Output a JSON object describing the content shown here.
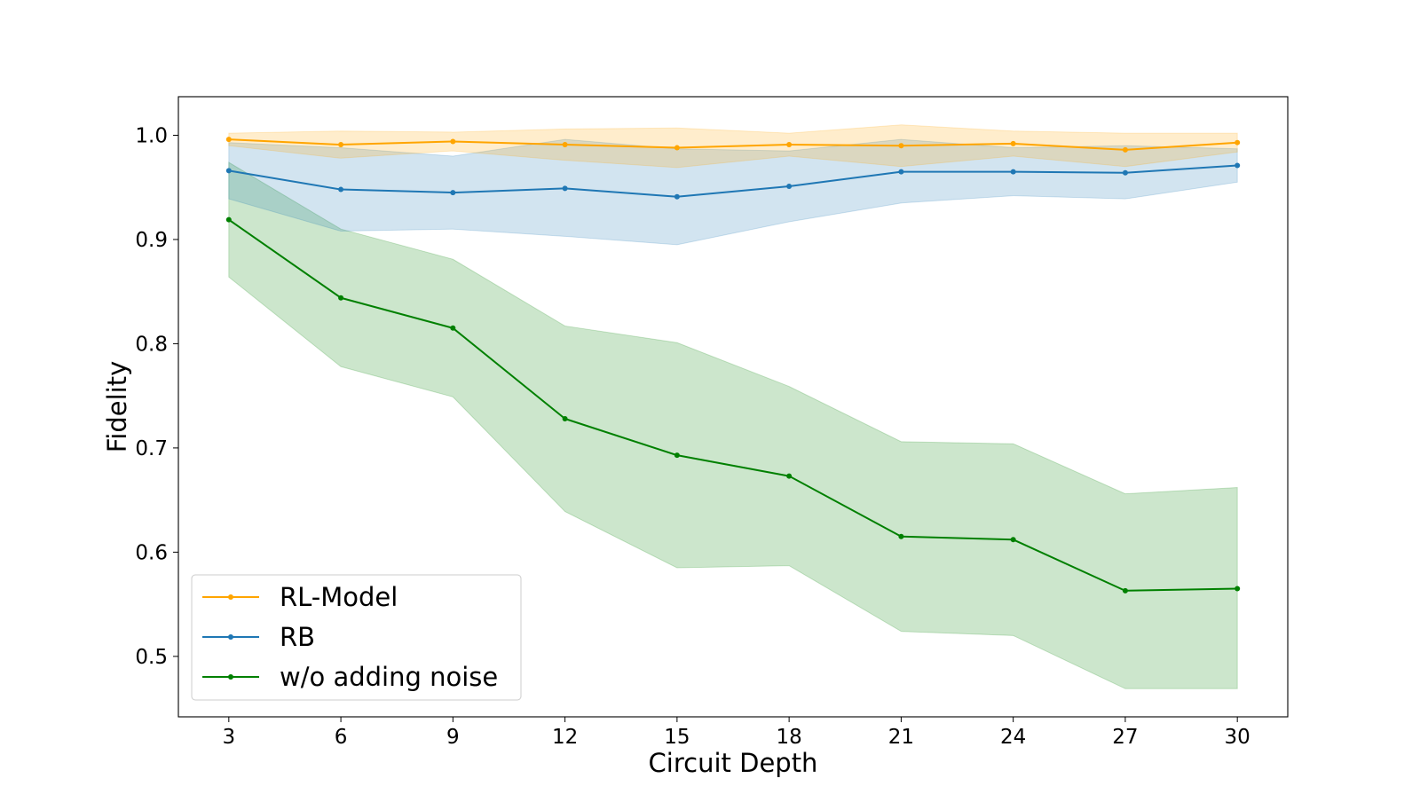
{
  "chart_data": {
    "type": "line",
    "title": "",
    "xlabel": "Circuit Depth",
    "ylabel": "Fidelity",
    "x": [
      3,
      6,
      9,
      12,
      15,
      18,
      21,
      24,
      27,
      30
    ],
    "xlim": [
      1.65,
      31.35
    ],
    "ylim": [
      0.442,
      1.037
    ],
    "xticks": [
      3,
      6,
      9,
      12,
      15,
      18,
      21,
      24,
      27,
      30
    ],
    "yticks": [
      0.5,
      0.6,
      0.7,
      0.8,
      0.9,
      1.0
    ],
    "grid": false,
    "legend_position": "lower-left",
    "series": [
      {
        "name": "w/o adding noise",
        "color": "#008000",
        "values": [
          0.919,
          0.844,
          0.815,
          0.728,
          0.693,
          0.673,
          0.615,
          0.612,
          0.563,
          0.565
        ],
        "lower": [
          0.864,
          0.778,
          0.749,
          0.639,
          0.585,
          0.587,
          0.524,
          0.52,
          0.469,
          0.469
        ],
        "upper": [
          0.974,
          0.91,
          0.881,
          0.817,
          0.801,
          0.759,
          0.706,
          0.704,
          0.656,
          0.662
        ]
      },
      {
        "name": "RB",
        "color": "#1f77b4",
        "values": [
          0.966,
          0.948,
          0.945,
          0.949,
          0.941,
          0.951,
          0.965,
          0.965,
          0.964,
          0.971
        ],
        "lower": [
          0.939,
          0.908,
          0.91,
          0.903,
          0.895,
          0.917,
          0.935,
          0.942,
          0.939,
          0.955
        ],
        "upper": [
          0.993,
          0.988,
          0.98,
          0.996,
          0.987,
          0.985,
          0.996,
          0.988,
          0.99,
          0.987
        ]
      },
      {
        "name": "RL-Model",
        "color": "#ffa500",
        "values": [
          0.996,
          0.991,
          0.994,
          0.991,
          0.988,
          0.991,
          0.99,
          0.992,
          0.986,
          0.993
        ],
        "lower": [
          0.99,
          0.978,
          0.985,
          0.976,
          0.969,
          0.98,
          0.97,
          0.98,
          0.97,
          0.984
        ],
        "upper": [
          1.002,
          1.004,
          1.003,
          1.006,
          1.007,
          1.002,
          1.01,
          1.004,
          1.002,
          1.002
        ]
      }
    ],
    "legend_order": [
      "RL-Model",
      "RB",
      "w/o adding noise"
    ]
  }
}
